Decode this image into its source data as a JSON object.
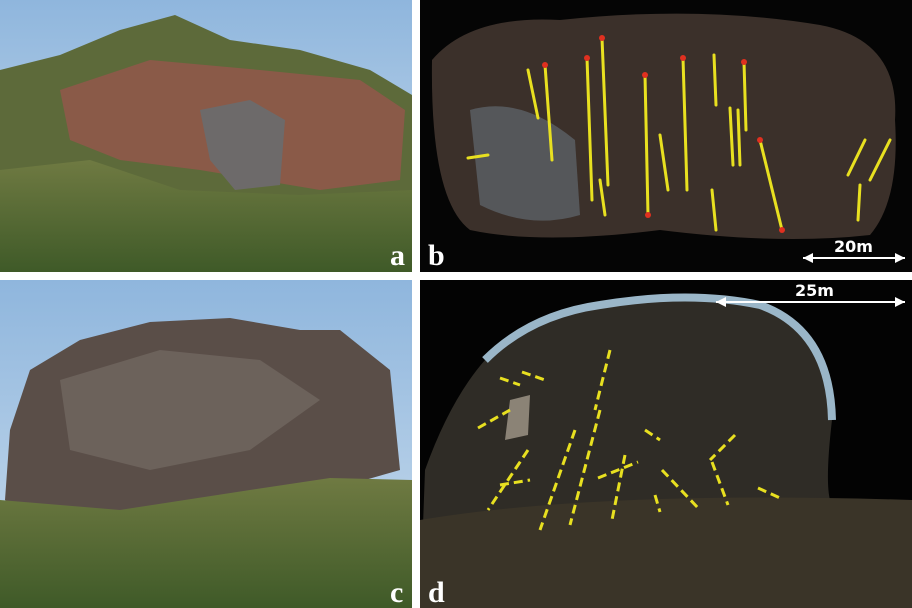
{
  "panels": [
    {
      "label": "a"
    },
    {
      "label": "b",
      "scale_bar": "20m"
    },
    {
      "label": "c"
    },
    {
      "label": "d",
      "scale_bar": "25m"
    }
  ]
}
